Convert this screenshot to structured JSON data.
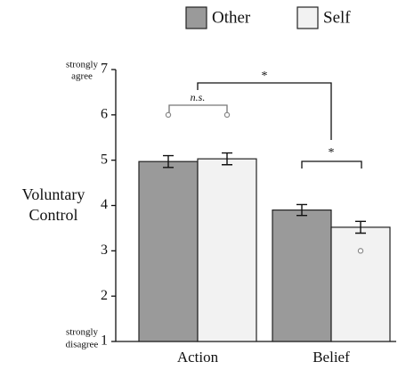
{
  "chart_data": {
    "type": "bar",
    "categories": [
      "Action",
      "Belief"
    ],
    "series": [
      {
        "name": "Other",
        "color": "#9a9a9a",
        "values": [
          4.97,
          3.9
        ],
        "errors": [
          0.13,
          0.12
        ],
        "outliers": [
          6,
          null
        ]
      },
      {
        "name": "Self",
        "color": "#f2f2f2",
        "values": [
          5.03,
          3.52
        ],
        "errors": [
          0.13,
          0.13
        ],
        "outliers": [
          6,
          3
        ]
      }
    ],
    "ylim": [
      1,
      7
    ],
    "yticks": [
      1,
      2,
      3,
      4,
      5,
      6,
      7
    ],
    "y_label": [
      "Voluntary",
      "Control"
    ],
    "y_top_label": [
      "strongly",
      "agree"
    ],
    "y_bottom_label": [
      "strongly",
      "disagree"
    ],
    "annotations": [
      "n.s.",
      "*",
      "*"
    ],
    "legend": "top"
  }
}
